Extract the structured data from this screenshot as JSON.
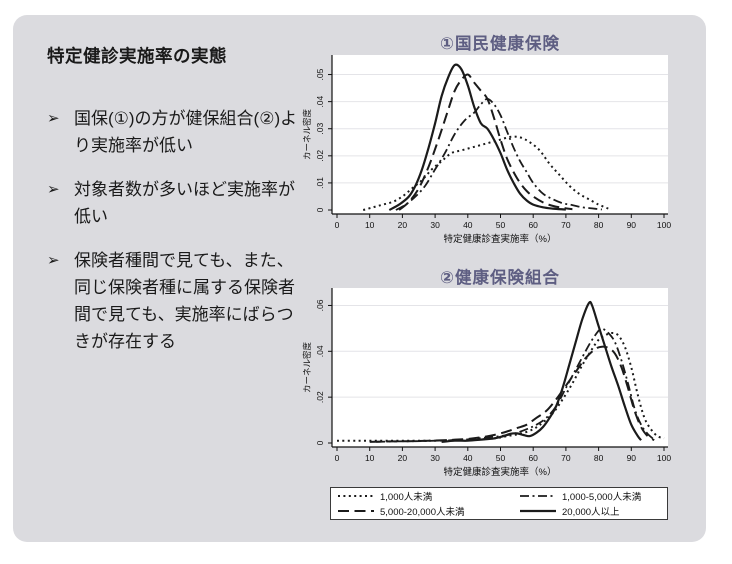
{
  "slide": {
    "heading": "特定健診実施率の実態",
    "bullets": [
      {
        "marker": "➢",
        "text": "国保(①)の方が健保組合(②)より実施率が低い"
      },
      {
        "marker": "➢",
        "text": "対象者数が多いほど実施率が低い"
      },
      {
        "marker": "➢",
        "text": "保険者種間で見ても、また、同じ保険者種に属する保険者間で見ても、実施率にばらつきが存在する"
      }
    ]
  },
  "colors": {
    "slide_bg": "#dbdbdf",
    "title_accent": "#5e5e82",
    "line": "#1b1b1b",
    "plot_bg": "#ffffff",
    "grid": "#e4e4e8",
    "axis": "#111111"
  },
  "chart_data": [
    {
      "type": "line",
      "title": "①国民健康保険",
      "xlabel": "特定健康診査実施率（%）",
      "ylabel": "カーネル密度",
      "xlim": [
        0,
        100
      ],
      "ylim": [
        0,
        0.055
      ],
      "xticks": [
        0,
        10,
        20,
        30,
        40,
        50,
        60,
        70,
        80,
        90,
        100
      ],
      "yticks": [
        0,
        0.01,
        0.02,
        0.03,
        0.04,
        0.05
      ],
      "ytick_labels": [
        "0",
        ".01",
        ".02",
        ".03",
        ".04",
        ".05"
      ],
      "grid": true,
      "legend_position": "bottom",
      "series": [
        {
          "name": "1,000人未満",
          "style": "dotted",
          "points": [
            [
              8,
              0
            ],
            [
              11,
              0.001
            ],
            [
              14,
              0.002
            ],
            [
              17,
              0.003
            ],
            [
              20,
              0.005
            ],
            [
              23,
              0.008
            ],
            [
              26,
              0.011
            ],
            [
              29,
              0.015
            ],
            [
              32,
              0.018
            ],
            [
              35,
              0.021
            ],
            [
              38,
              0.022
            ],
            [
              41,
              0.023
            ],
            [
              44,
              0.024
            ],
            [
              47,
              0.025
            ],
            [
              50,
              0.026
            ],
            [
              53,
              0.027
            ],
            [
              56,
              0.0268
            ],
            [
              59,
              0.025
            ],
            [
              62,
              0.022
            ],
            [
              65,
              0.017
            ],
            [
              68,
              0.013
            ],
            [
              71,
              0.009
            ],
            [
              74,
              0.006
            ],
            [
              77,
              0.004
            ],
            [
              80,
              0.002
            ],
            [
              82,
              0.001
            ],
            [
              83,
              0.0005
            ]
          ]
        },
        {
          "name": "1,000-5,000人未満",
          "style": "dashdot",
          "points": [
            [
              18,
              0
            ],
            [
              21,
              0.002
            ],
            [
              24,
              0.005
            ],
            [
              27,
              0.009
            ],
            [
              30,
              0.015
            ],
            [
              33,
              0.021
            ],
            [
              36,
              0.028
            ],
            [
              39,
              0.033
            ],
            [
              42,
              0.036
            ],
            [
              44,
              0.039
            ],
            [
              46,
              0.041
            ],
            [
              48,
              0.039
            ],
            [
              50,
              0.035
            ],
            [
              52,
              0.029
            ],
            [
              54,
              0.023
            ],
            [
              56,
              0.018
            ],
            [
              58,
              0.014
            ],
            [
              60,
              0.01
            ],
            [
              63,
              0.006
            ],
            [
              66,
              0.004
            ],
            [
              69,
              0.0025
            ],
            [
              72,
              0.0018
            ],
            [
              75,
              0.001
            ],
            [
              78,
              0.0006
            ],
            [
              81,
              0.0002
            ]
          ]
        },
        {
          "name": "5,000-20,000人未満",
          "style": "longdash",
          "points": [
            [
              19,
              0
            ],
            [
              22,
              0.003
            ],
            [
              25,
              0.008
            ],
            [
              28,
              0.016
            ],
            [
              31,
              0.026
            ],
            [
              34,
              0.037
            ],
            [
              36,
              0.044
            ],
            [
              38,
              0.048
            ],
            [
              40,
              0.05
            ],
            [
              42,
              0.047
            ],
            [
              44,
              0.044
            ],
            [
              46,
              0.041
            ],
            [
              48,
              0.034
            ],
            [
              50,
              0.026
            ],
            [
              52,
              0.019
            ],
            [
              54,
              0.014
            ],
            [
              56,
              0.01
            ],
            [
              58,
              0.007
            ],
            [
              60,
              0.005
            ],
            [
              63,
              0.0028
            ],
            [
              66,
              0.0015
            ],
            [
              69,
              0.0008
            ],
            [
              72,
              0.0003
            ]
          ]
        },
        {
          "name": "20,000人以上",
          "style": "solid",
          "points": [
            [
              16,
              0
            ],
            [
              19,
              0.002
            ],
            [
              22,
              0.005
            ],
            [
              24,
              0.009
            ],
            [
              26,
              0.015
            ],
            [
              28,
              0.023
            ],
            [
              30,
              0.032
            ],
            [
              32,
              0.042
            ],
            [
              34,
              0.049
            ],
            [
              36,
              0.0535
            ],
            [
              38,
              0.052
            ],
            [
              40,
              0.046
            ],
            [
              42,
              0.038
            ],
            [
              44,
              0.032
            ],
            [
              46,
              0.03
            ],
            [
              48,
              0.026
            ],
            [
              50,
              0.021
            ],
            [
              52,
              0.015
            ],
            [
              54,
              0.01
            ],
            [
              56,
              0.006
            ],
            [
              58,
              0.0035
            ],
            [
              60,
              0.002
            ],
            [
              63,
              0.001
            ],
            [
              66,
              0.0005
            ],
            [
              70,
              0.0002
            ]
          ]
        }
      ]
    },
    {
      "type": "line",
      "title": "②健康保険組合",
      "xlabel": "特定健康診査実施率（%）",
      "ylabel": "カーネル密度",
      "xlim": [
        0,
        100
      ],
      "ylim": [
        0,
        0.065
      ],
      "xticks": [
        0,
        10,
        20,
        30,
        40,
        50,
        60,
        70,
        80,
        90,
        100
      ],
      "yticks": [
        0,
        0.02,
        0.04,
        0.06
      ],
      "ytick_labels": [
        "0",
        ".02",
        ".04",
        ".06"
      ],
      "grid": true,
      "legend_position": "bottom",
      "series": [
        {
          "name": "1,000人未満",
          "style": "dotted",
          "points": [
            [
              0,
              0.001
            ],
            [
              6,
              0.001
            ],
            [
              12,
              0.001
            ],
            [
              18,
              0.001
            ],
            [
              24,
              0.001
            ],
            [
              30,
              0.001
            ],
            [
              36,
              0.0012
            ],
            [
              42,
              0.0015
            ],
            [
              48,
              0.002
            ],
            [
              52,
              0.003
            ],
            [
              56,
              0.004
            ],
            [
              60,
              0.006
            ],
            [
              63,
              0.009
            ],
            [
              66,
              0.013
            ],
            [
              69,
              0.019
            ],
            [
              72,
              0.026
            ],
            [
              75,
              0.034
            ],
            [
              78,
              0.041
            ],
            [
              80,
              0.045
            ],
            [
              82,
              0.047
            ],
            [
              84,
              0.048
            ],
            [
              86,
              0.047
            ],
            [
              88,
              0.042
            ],
            [
              90,
              0.033
            ],
            [
              92,
              0.021
            ],
            [
              94,
              0.011
            ],
            [
              96,
              0.006
            ],
            [
              98,
              0.003
            ],
            [
              100,
              0.002
            ]
          ]
        },
        {
          "name": "1,000-5,000人未満",
          "style": "dashdot",
          "points": [
            [
              12,
              0.0005
            ],
            [
              18,
              0.0007
            ],
            [
              24,
              0.0008
            ],
            [
              30,
              0.001
            ],
            [
              36,
              0.0012
            ],
            [
              42,
              0.0018
            ],
            [
              46,
              0.0025
            ],
            [
              50,
              0.003
            ],
            [
              54,
              0.004
            ],
            [
              58,
              0.006
            ],
            [
              61,
              0.008
            ],
            [
              64,
              0.011
            ],
            [
              67,
              0.016
            ],
            [
              70,
              0.024
            ],
            [
              73,
              0.032
            ],
            [
              76,
              0.04
            ],
            [
              78,
              0.045
            ],
            [
              80,
              0.049
            ],
            [
              81,
              0.05
            ],
            [
              83,
              0.048
            ],
            [
              85,
              0.044
            ],
            [
              87,
              0.036
            ],
            [
              89,
              0.026
            ],
            [
              91,
              0.015
            ],
            [
              93,
              0.008
            ],
            [
              95,
              0.004
            ],
            [
              97,
              0.0015
            ]
          ]
        },
        {
          "name": "5,000-20,000人未満",
          "style": "longdash",
          "points": [
            [
              10,
              0.0005
            ],
            [
              16,
              0.0007
            ],
            [
              22,
              0.0008
            ],
            [
              28,
              0.001
            ],
            [
              34,
              0.0013
            ],
            [
              40,
              0.0018
            ],
            [
              44,
              0.0025
            ],
            [
              48,
              0.0035
            ],
            [
              52,
              0.005
            ],
            [
              55,
              0.0065
            ],
            [
              58,
              0.008
            ],
            [
              61,
              0.011
            ],
            [
              64,
              0.014
            ],
            [
              67,
              0.019
            ],
            [
              70,
              0.025
            ],
            [
              73,
              0.031
            ],
            [
              76,
              0.037
            ],
            [
              79,
              0.041
            ],
            [
              81,
              0.042
            ],
            [
              83,
              0.0415
            ],
            [
              85,
              0.039
            ],
            [
              87,
              0.033
            ],
            [
              89,
              0.024
            ],
            [
              91,
              0.014
            ],
            [
              93,
              0.007
            ],
            [
              95,
              0.003
            ],
            [
              97,
              0.0012
            ]
          ]
        },
        {
          "name": "20,000人以上",
          "style": "solid",
          "points": [
            [
              32,
              0.0005
            ],
            [
              36,
              0.001
            ],
            [
              40,
              0.001
            ],
            [
              44,
              0.0015
            ],
            [
              48,
              0.002
            ],
            [
              51,
              0.003
            ],
            [
              53,
              0.004
            ],
            [
              55,
              0.0042
            ],
            [
              57,
              0.0035
            ],
            [
              59,
              0.003
            ],
            [
              61,
              0.0045
            ],
            [
              63,
              0.007
            ],
            [
              65,
              0.011
            ],
            [
              67,
              0.016
            ],
            [
              69,
              0.024
            ],
            [
              71,
              0.034
            ],
            [
              73,
              0.044
            ],
            [
              75,
              0.054
            ],
            [
              77,
              0.061
            ],
            [
              78,
              0.06
            ],
            [
              80,
              0.051
            ],
            [
              82,
              0.042
            ],
            [
              84,
              0.033
            ],
            [
              86,
              0.025
            ],
            [
              88,
              0.016
            ],
            [
              90,
              0.008
            ],
            [
              92,
              0.003
            ],
            [
              93,
              0.0012
            ]
          ]
        }
      ]
    }
  ]
}
